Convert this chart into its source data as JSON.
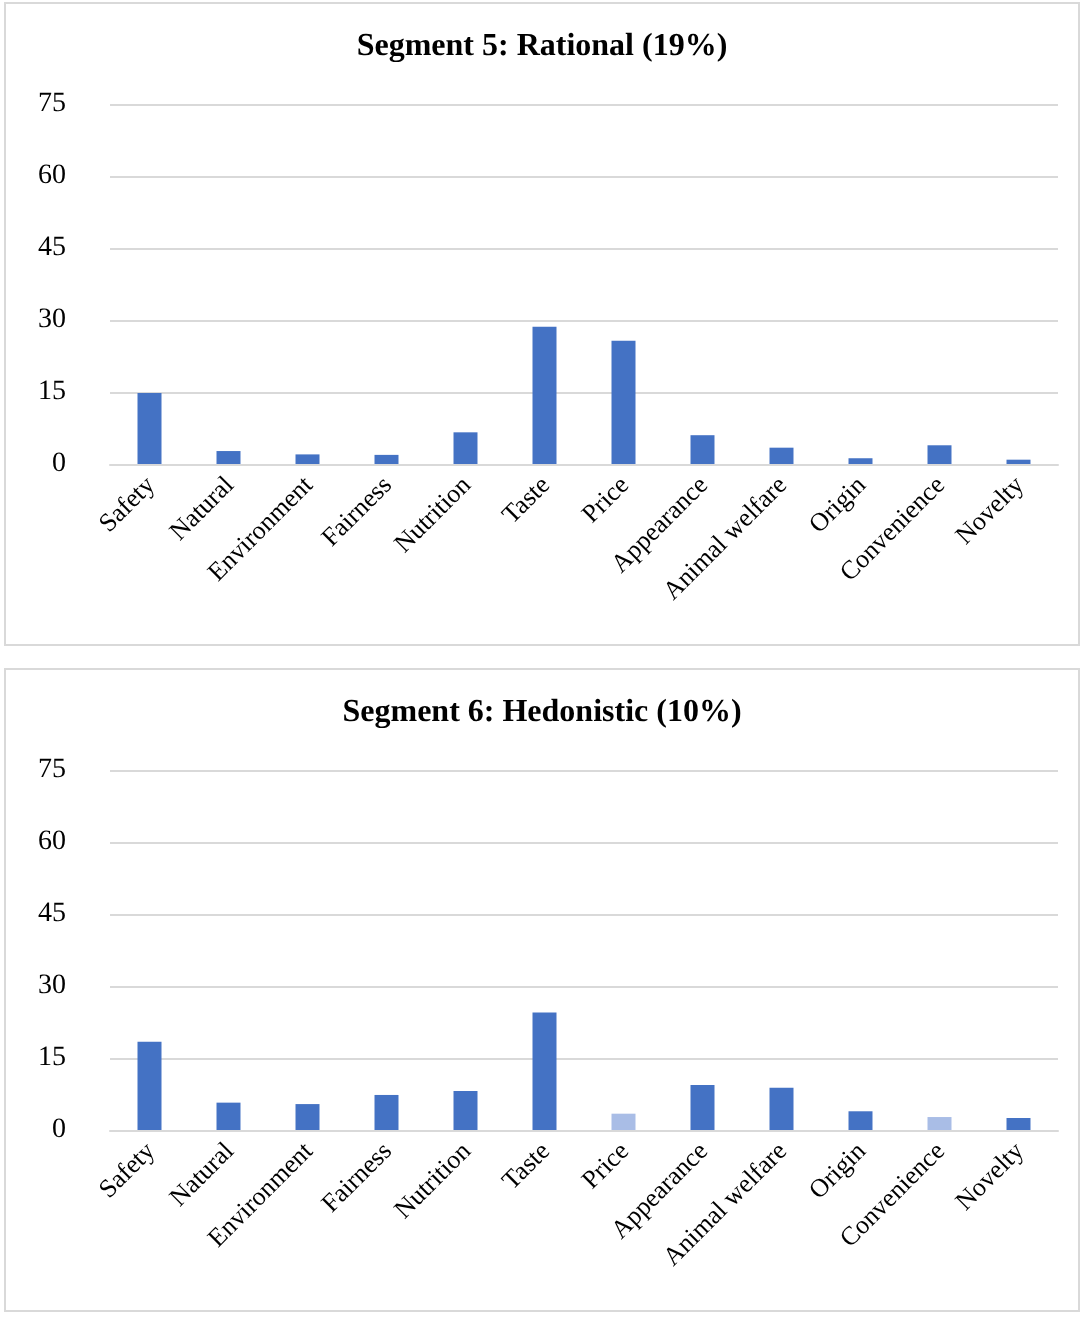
{
  "chart_data": [
    {
      "type": "bar",
      "title": "Segment 5: Rational (19%)",
      "categories": [
        "Safety",
        "Natural",
        "Environment",
        "Fairness",
        "Nutrition",
        "Taste",
        "Price",
        "Appearance",
        "Animal welfare",
        "Origin",
        "Convenience",
        "Novelty"
      ],
      "values": [
        14.8,
        2.7,
        2.0,
        1.9,
        6.6,
        28.6,
        25.7,
        6.0,
        3.4,
        1.2,
        3.9,
        0.9
      ],
      "color": "#4472c4",
      "ylim": [
        0,
        75
      ],
      "yticks": [
        0,
        15,
        30,
        45,
        60,
        75
      ],
      "grid": "y"
    },
    {
      "type": "bar",
      "title": "Segment 6: Hedonistic (10%)",
      "categories": [
        "Safety",
        "Natural",
        "Environment",
        "Fairness",
        "Nutrition",
        "Taste",
        "Price",
        "Appearance",
        "Animal welfare",
        "Origin",
        "Convenience",
        "Novelty"
      ],
      "values": [
        18.4,
        5.7,
        5.4,
        7.3,
        8.1,
        24.5,
        3.4,
        9.4,
        8.8,
        3.9,
        2.7,
        2.5
      ],
      "colors": [
        "#4472c4",
        "#4472c4",
        "#4472c4",
        "#4472c4",
        "#4472c4",
        "#4472c4",
        "#a9bde6",
        "#4472c4",
        "#4472c4",
        "#4472c4",
        "#a9bde6",
        "#4472c4"
      ],
      "ylim": [
        0,
        75
      ],
      "yticks": [
        0,
        15,
        30,
        45,
        60,
        75
      ],
      "grid": "y"
    }
  ]
}
